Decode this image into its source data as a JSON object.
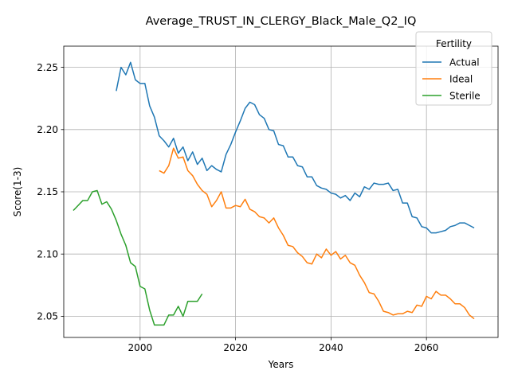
{
  "chart_data": {
    "type": "line",
    "title": "Average_TRUST_IN_CLERGY_Black_Male_Q2_IQ",
    "xlabel": "Years",
    "ylabel": "Score(1-3)",
    "xlim": [
      1984,
      2075
    ],
    "ylim": [
      2.033,
      2.267
    ],
    "xticks": [
      2000,
      2020,
      2040,
      2060
    ],
    "yticks": [
      2.05,
      2.1,
      2.15,
      2.2,
      2.25
    ],
    "xtick_labels": [
      "2000",
      "2020",
      "2040",
      "2060"
    ],
    "ytick_labels": [
      "2.05",
      "2.10",
      "2.15",
      "2.20",
      "2.25"
    ],
    "grid": true,
    "legend": {
      "title": "Fertility",
      "position": "top-right"
    },
    "series": [
      {
        "name": "Actual",
        "color": "#1f77b4",
        "x": [
          1995,
          1996,
          1997,
          1998,
          1999,
          2000,
          2001,
          2002,
          2003,
          2004,
          2005,
          2006,
          2007,
          2008,
          2009,
          2010,
          2011,
          2012,
          2013,
          2014,
          2015,
          2016,
          2017,
          2018,
          2019,
          2020,
          2021,
          2022,
          2023,
          2024,
          2025,
          2026,
          2027,
          2028,
          2029,
          2030,
          2031,
          2032,
          2033,
          2034,
          2035,
          2036,
          2037,
          2038,
          2039,
          2040,
          2041,
          2042,
          2043,
          2044,
          2045,
          2046,
          2047,
          2048,
          2049,
          2050,
          2051,
          2052,
          2053,
          2054,
          2055,
          2056,
          2057,
          2058,
          2059,
          2060,
          2061,
          2062,
          2063,
          2064,
          2065,
          2066,
          2067,
          2068,
          2069,
          2070
        ],
        "values": [
          2.231,
          2.25,
          2.244,
          2.254,
          2.24,
          2.237,
          2.237,
          2.219,
          2.21,
          2.195,
          2.191,
          2.186,
          2.193,
          2.181,
          2.186,
          2.175,
          2.182,
          2.172,
          2.177,
          2.167,
          2.171,
          2.168,
          2.166,
          2.18,
          2.188,
          2.198,
          2.207,
          2.217,
          2.222,
          2.22,
          2.212,
          2.209,
          2.2,
          2.199,
          2.188,
          2.187,
          2.178,
          2.178,
          2.171,
          2.17,
          2.162,
          2.162,
          2.155,
          2.153,
          2.152,
          2.149,
          2.148,
          2.145,
          2.147,
          2.143,
          2.149,
          2.146,
          2.154,
          2.152,
          2.157,
          2.156,
          2.156,
          2.157,
          2.151,
          2.152,
          2.141,
          2.141,
          2.13,
          2.129,
          2.122,
          2.121,
          2.117,
          2.117,
          2.118,
          2.119,
          2.122,
          2.123,
          2.125,
          2.125,
          2.123,
          2.121
        ]
      },
      {
        "name": "Ideal",
        "color": "#ff7f0e",
        "x": [
          2004,
          2005,
          2006,
          2007,
          2008,
          2009,
          2010,
          2011,
          2012,
          2013,
          2014,
          2015,
          2016,
          2017,
          2018,
          2019,
          2020,
          2021,
          2022,
          2023,
          2024,
          2025,
          2026,
          2027,
          2028,
          2029,
          2030,
          2031,
          2032,
          2033,
          2034,
          2035,
          2036,
          2037,
          2038,
          2039,
          2040,
          2041,
          2042,
          2043,
          2044,
          2045,
          2046,
          2047,
          2048,
          2049,
          2050,
          2051,
          2052,
          2053,
          2054,
          2055,
          2056,
          2057,
          2058,
          2059,
          2060,
          2061,
          2062,
          2063,
          2064,
          2065,
          2066,
          2067,
          2068,
          2069,
          2070
        ],
        "values": [
          2.167,
          2.165,
          2.171,
          2.185,
          2.177,
          2.178,
          2.167,
          2.163,
          2.156,
          2.151,
          2.148,
          2.138,
          2.143,
          2.15,
          2.137,
          2.137,
          2.139,
          2.138,
          2.144,
          2.136,
          2.134,
          2.13,
          2.129,
          2.125,
          2.129,
          2.121,
          2.115,
          2.107,
          2.106,
          2.101,
          2.098,
          2.093,
          2.092,
          2.1,
          2.097,
          2.104,
          2.099,
          2.102,
          2.096,
          2.099,
          2.093,
          2.091,
          2.083,
          2.077,
          2.069,
          2.068,
          2.062,
          2.054,
          2.053,
          2.051,
          2.052,
          2.052,
          2.054,
          2.053,
          2.059,
          2.058,
          2.066,
          2.064,
          2.07,
          2.067,
          2.067,
          2.064,
          2.06,
          2.06,
          2.057,
          2.051,
          2.048
        ]
      },
      {
        "name": "Sterile",
        "color": "#2ca02c",
        "x": [
          1986,
          1987,
          1988,
          1989,
          1990,
          1991,
          1992,
          1993,
          1994,
          1995,
          1996,
          1997,
          1998,
          1999,
          2000,
          2001,
          2002,
          2003,
          2004,
          2005,
          2006,
          2007,
          2008,
          2009,
          2010,
          2011,
          2012,
          2013
        ],
        "values": [
          2.135,
          2.139,
          2.143,
          2.143,
          2.15,
          2.151,
          2.14,
          2.142,
          2.136,
          2.127,
          2.116,
          2.107,
          2.093,
          2.09,
          2.074,
          2.072,
          2.055,
          2.043,
          2.043,
          2.043,
          2.051,
          2.051,
          2.058,
          2.05,
          2.062,
          2.062,
          2.062,
          2.068
        ]
      }
    ]
  }
}
